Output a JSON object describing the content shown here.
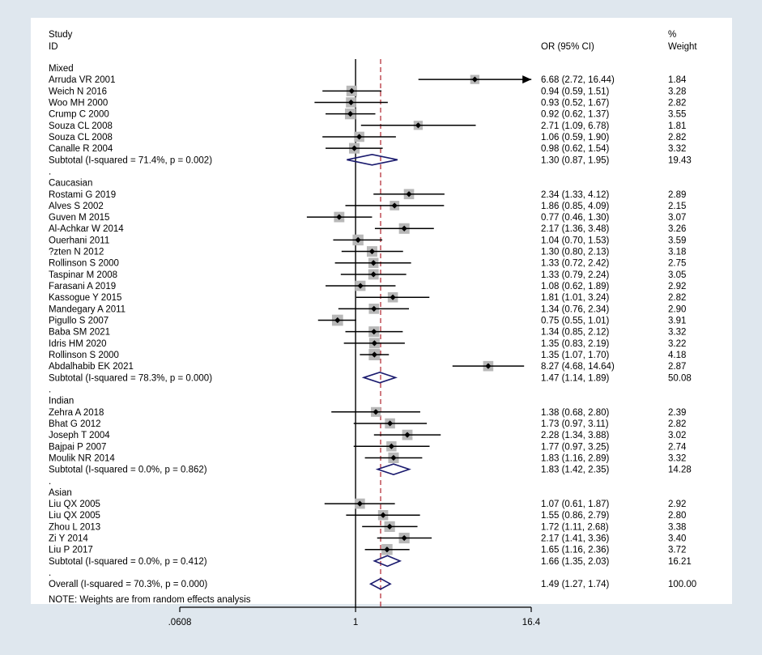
{
  "chart_data": {
    "type": "forest",
    "x_scale": "log",
    "xlim": [
      0.0608,
      16.4
    ],
    "x_ticks": [
      ".0608",
      "1",
      "16.4"
    ],
    "null_value": 1,
    "overall_or": 1.49,
    "headers": {
      "study_line1": "Study",
      "study_line2": "ID",
      "or": "OR (95% CI)",
      "weight_line1": "%",
      "weight_line2": "Weight"
    },
    "rows": [
      {
        "kind": "group",
        "label": "Mixed"
      },
      {
        "kind": "study",
        "label": "Arruda VR 2001",
        "or": 6.68,
        "lo": 2.72,
        "hi": 16.44,
        "ci": "6.68 (2.72, 16.44)",
        "weight": "1.84",
        "arrow": true
      },
      {
        "kind": "study",
        "label": "Weich N 2016",
        "or": 0.94,
        "lo": 0.59,
        "hi": 1.51,
        "ci": "0.94 (0.59, 1.51)",
        "weight": "3.28"
      },
      {
        "kind": "study",
        "label": "Woo MH 2000",
        "or": 0.93,
        "lo": 0.52,
        "hi": 1.67,
        "ci": "0.93 (0.52, 1.67)",
        "weight": "2.82"
      },
      {
        "kind": "study",
        "label": "Crump C 2000",
        "or": 0.92,
        "lo": 0.62,
        "hi": 1.37,
        "ci": "0.92 (0.62, 1.37)",
        "weight": "3.55"
      },
      {
        "kind": "study",
        "label": "Souza CL 2008",
        "or": 2.71,
        "lo": 1.09,
        "hi": 6.78,
        "ci": "2.71 (1.09, 6.78)",
        "weight": "1.81"
      },
      {
        "kind": "study",
        "label": "Souza CL 2008",
        "or": 1.06,
        "lo": 0.59,
        "hi": 1.9,
        "ci": "1.06 (0.59, 1.90)",
        "weight": "2.82"
      },
      {
        "kind": "study",
        "label": "Canalle R 2004",
        "or": 0.98,
        "lo": 0.62,
        "hi": 1.54,
        "ci": "0.98 (0.62, 1.54)",
        "weight": "3.32"
      },
      {
        "kind": "subtotal",
        "label": "Subtotal  (I-squared = 71.4%, p = 0.002)",
        "or": 1.3,
        "lo": 0.87,
        "hi": 1.95,
        "ci": "1.30 (0.87, 1.95)",
        "weight": "19.43"
      },
      {
        "kind": "dot",
        "label": "."
      },
      {
        "kind": "group",
        "label": "Caucasian"
      },
      {
        "kind": "study",
        "label": "Rostami G 2019",
        "or": 2.34,
        "lo": 1.33,
        "hi": 4.12,
        "ci": "2.34 (1.33, 4.12)",
        "weight": "2.89"
      },
      {
        "kind": "study",
        "label": "Alves S 2002",
        "or": 1.86,
        "lo": 0.85,
        "hi": 4.09,
        "ci": "1.86 (0.85, 4.09)",
        "weight": "2.15"
      },
      {
        "kind": "study",
        "label": "Guven M 2015",
        "or": 0.77,
        "lo": 0.46,
        "hi": 1.3,
        "ci": "0.77 (0.46, 1.30)",
        "weight": "3.07"
      },
      {
        "kind": "study",
        "label": "Al-Achkar W 2014",
        "or": 2.17,
        "lo": 1.36,
        "hi": 3.48,
        "ci": "2.17 (1.36, 3.48)",
        "weight": "3.26"
      },
      {
        "kind": "study",
        "label": "Ouerhani 2011",
        "or": 1.04,
        "lo": 0.7,
        "hi": 1.53,
        "ci": "1.04 (0.70, 1.53)",
        "weight": "3.59"
      },
      {
        "kind": "study",
        "label": "?zten N 2012",
        "or": 1.3,
        "lo": 0.8,
        "hi": 2.13,
        "ci": "1.30 (0.80, 2.13)",
        "weight": "3.18"
      },
      {
        "kind": "study",
        "label": "Rollinson S 2000",
        "or": 1.33,
        "lo": 0.72,
        "hi": 2.42,
        "ci": "1.33 (0.72, 2.42)",
        "weight": "2.75"
      },
      {
        "kind": "study",
        "label": "Taspinar M 2008",
        "or": 1.33,
        "lo": 0.79,
        "hi": 2.24,
        "ci": "1.33 (0.79, 2.24)",
        "weight": "3.05"
      },
      {
        "kind": "study",
        "label": "Farasani A 2019",
        "or": 1.08,
        "lo": 0.62,
        "hi": 1.89,
        "ci": "1.08 (0.62, 1.89)",
        "weight": "2.92"
      },
      {
        "kind": "study",
        "label": "Kassogue Y 2015",
        "or": 1.81,
        "lo": 1.01,
        "hi": 3.24,
        "ci": "1.81 (1.01, 3.24)",
        "weight": "2.82"
      },
      {
        "kind": "study",
        "label": "Mandegary A 2011",
        "or": 1.34,
        "lo": 0.76,
        "hi": 2.34,
        "ci": "1.34 (0.76, 2.34)",
        "weight": "2.90"
      },
      {
        "kind": "study",
        "label": "Pigullo S 2007",
        "or": 0.75,
        "lo": 0.55,
        "hi": 1.01,
        "ci": "0.75 (0.55, 1.01)",
        "weight": "3.91"
      },
      {
        "kind": "study",
        "label": "Baba SM 2021",
        "or": 1.34,
        "lo": 0.85,
        "hi": 2.12,
        "ci": "1.34 (0.85, 2.12)",
        "weight": "3.32"
      },
      {
        "kind": "study",
        "label": "Idris HM 2020",
        "or": 1.35,
        "lo": 0.83,
        "hi": 2.19,
        "ci": "1.35 (0.83, 2.19)",
        "weight": "3.22"
      },
      {
        "kind": "study",
        "label": "Rollinson S 2000",
        "or": 1.35,
        "lo": 1.07,
        "hi": 1.7,
        "ci": "1.35 (1.07, 1.70)",
        "weight": "4.18"
      },
      {
        "kind": "study",
        "label": "Abdalhabib EK 2021",
        "or": 8.27,
        "lo": 4.68,
        "hi": 14.64,
        "ci": "8.27 (4.68, 14.64)",
        "weight": "2.87"
      },
      {
        "kind": "subtotal",
        "label": "Subtotal  (I-squared = 78.3%, p = 0.000)",
        "or": 1.47,
        "lo": 1.14,
        "hi": 1.89,
        "ci": "1.47 (1.14, 1.89)",
        "weight": "50.08"
      },
      {
        "kind": "dot",
        "label": "."
      },
      {
        "kind": "group",
        "label": "Indian"
      },
      {
        "kind": "study",
        "label": "Zehra A 2018",
        "or": 1.38,
        "lo": 0.68,
        "hi": 2.8,
        "ci": "1.38 (0.68, 2.80)",
        "weight": "2.39"
      },
      {
        "kind": "study",
        "label": "Bhat G 2012",
        "or": 1.73,
        "lo": 0.97,
        "hi": 3.11,
        "ci": "1.73 (0.97, 3.11)",
        "weight": "2.82"
      },
      {
        "kind": "study",
        "label": "Joseph T 2004",
        "or": 2.28,
        "lo": 1.34,
        "hi": 3.88,
        "ci": "2.28 (1.34, 3.88)",
        "weight": "3.02"
      },
      {
        "kind": "study",
        "label": "Bajpai P 2007",
        "or": 1.77,
        "lo": 0.97,
        "hi": 3.25,
        "ci": "1.77 (0.97, 3.25)",
        "weight": "2.74"
      },
      {
        "kind": "study",
        "label": "Moulik NR 2014",
        "or": 1.83,
        "lo": 1.16,
        "hi": 2.89,
        "ci": "1.83 (1.16, 2.89)",
        "weight": "3.32"
      },
      {
        "kind": "subtotal",
        "label": "Subtotal  (I-squared = 0.0%, p = 0.862)",
        "or": 1.83,
        "lo": 1.42,
        "hi": 2.35,
        "ci": "1.83 (1.42, 2.35)",
        "weight": "14.28"
      },
      {
        "kind": "dot",
        "label": "."
      },
      {
        "kind": "group",
        "label": "Asian"
      },
      {
        "kind": "study",
        "label": "Liu QX 2005",
        "or": 1.07,
        "lo": 0.61,
        "hi": 1.87,
        "ci": "1.07 (0.61, 1.87)",
        "weight": "2.92"
      },
      {
        "kind": "study",
        "label": "Liu QX 2005",
        "or": 1.55,
        "lo": 0.86,
        "hi": 2.79,
        "ci": "1.55 (0.86, 2.79)",
        "weight": "2.80"
      },
      {
        "kind": "study",
        "label": "Zhou L 2013",
        "or": 1.72,
        "lo": 1.11,
        "hi": 2.68,
        "ci": "1.72 (1.11, 2.68)",
        "weight": "3.38"
      },
      {
        "kind": "study",
        "label": "Zi Y 2014",
        "or": 2.17,
        "lo": 1.41,
        "hi": 3.36,
        "ci": "2.17 (1.41, 3.36)",
        "weight": "3.40"
      },
      {
        "kind": "study",
        "label": "Liu P 2017",
        "or": 1.65,
        "lo": 1.16,
        "hi": 2.36,
        "ci": "1.65 (1.16, 2.36)",
        "weight": "3.72"
      },
      {
        "kind": "subtotal",
        "label": "Subtotal  (I-squared = 0.0%, p = 0.412)",
        "or": 1.66,
        "lo": 1.35,
        "hi": 2.03,
        "ci": "1.66 (1.35, 2.03)",
        "weight": "16.21"
      },
      {
        "kind": "dot",
        "label": "."
      },
      {
        "kind": "subtotal",
        "label": "Overall  (I-squared = 70.3%, p = 0.000)",
        "or": 1.49,
        "lo": 1.27,
        "hi": 1.74,
        "ci": "1.49 (1.27, 1.74)",
        "weight": "100.00"
      }
    ],
    "note": "NOTE: Weights are from random effects analysis",
    "colors": {
      "background": "#dfe7ee",
      "panel": "#ffffff",
      "diamond": "#1a1a6e",
      "reference_line": "#b0202a",
      "weight_box": "#b8b8b8",
      "point": "#000000"
    }
  }
}
